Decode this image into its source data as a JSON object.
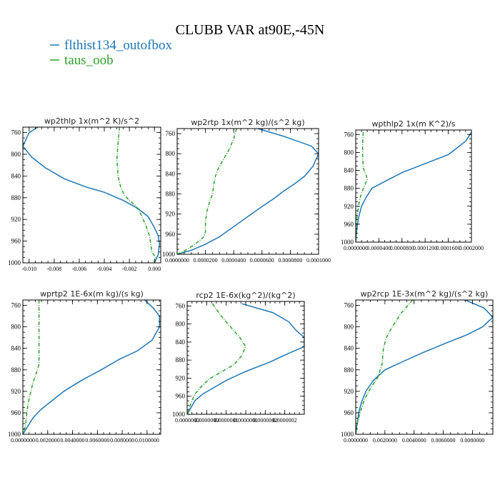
{
  "title": "CLUBB VAR at90E,-45N",
  "colors": {
    "series1": "#1f77b4",
    "series2": "#2ca02c"
  },
  "legend": [
    {
      "label": "flthist134_outofbox",
      "color": "#1f77b4",
      "style": "solid"
    },
    {
      "label": "taus_oob",
      "color": "#2ca02c",
      "style": "dashdot"
    }
  ],
  "chart_data": [
    {
      "type": "line",
      "title": "wp2thlp  1x(m^2 K)/s^2",
      "xlim": [
        -0.0105,
        0.0005
      ],
      "ylim": [
        1000,
        750
      ],
      "yticks": [
        760,
        800,
        840,
        880,
        920,
        960,
        1000
      ],
      "xticks": [
        -0.01,
        -0.008,
        -0.006,
        -0.004,
        -0.002,
        0.0
      ],
      "xtick_labels": [
        "-0.010",
        "-0.008",
        "-0.006",
        "-0.004",
        "-0.002",
        "0.000"
      ],
      "series": [
        {
          "name": "flthist134_outofbox",
          "color": "#1f77b4",
          "dash": "",
          "points": [
            [
              -0.0093,
              750
            ],
            [
              -0.01,
              760
            ],
            [
              -0.0105,
              785
            ],
            [
              -0.0098,
              805
            ],
            [
              -0.0087,
              825
            ],
            [
              -0.0072,
              845
            ],
            [
              -0.0055,
              860
            ],
            [
              -0.004,
              870
            ],
            [
              -0.0025,
              885
            ],
            [
              -0.0013,
              900
            ],
            [
              -0.0005,
              915
            ],
            [
              0.0,
              935
            ],
            [
              0.0003,
              950
            ],
            [
              0.0004,
              965
            ],
            [
              0.0003,
              985
            ],
            [
              0.0,
              1000
            ]
          ]
        },
        {
          "name": "taus_oob",
          "color": "#2ca02c",
          "dash": "5,2,1,2",
          "points": [
            [
              -0.0028,
              750
            ],
            [
              -0.0029,
              780
            ],
            [
              -0.003,
              810
            ],
            [
              -0.0029,
              840
            ],
            [
              -0.0027,
              860
            ],
            [
              -0.0024,
              875
            ],
            [
              -0.002,
              885
            ],
            [
              -0.0015,
              895
            ],
            [
              -0.0011,
              910
            ],
            [
              -0.0007,
              930
            ],
            [
              -0.0004,
              950
            ],
            [
              -0.0003,
              965
            ],
            [
              -0.0002,
              980
            ],
            [
              0.0001,
              990
            ],
            [
              0.0,
              1000
            ]
          ]
        }
      ]
    },
    {
      "type": "line",
      "title": "wp2rtp  1x(m^2 kg)/(s^2 kg)",
      "xlim": [
        0.0,
        0.0001
      ],
      "ylim": [
        1000,
        750
      ],
      "yticks": [
        760,
        800,
        840,
        880,
        920,
        960,
        1000
      ],
      "xticks": [
        0.0,
        2e-05,
        4e-05,
        6e-05,
        8e-05,
        0.0001
      ],
      "xtick_labels": [
        "0.0000000",
        "0.0000200",
        "0.0000400",
        "0.0000600",
        "0.0000800",
        "0.0001000"
      ],
      "series": [
        {
          "name": "flthist134_outofbox",
          "color": "#1f77b4",
          "dash": "",
          "points": [
            [
              5.7e-05,
              750
            ],
            [
              7.5e-05,
              765
            ],
            [
              9.5e-05,
              785
            ],
            [
              0.0001,
              800
            ],
            [
              9.6e-05,
              825
            ],
            [
              9e-05,
              845
            ],
            [
              8.3e-05,
              860
            ],
            [
              7.5e-05,
              875
            ],
            [
              6.8e-05,
              890
            ],
            [
              6e-05,
              905
            ],
            [
              5e-05,
              925
            ],
            [
              4e-05,
              945
            ],
            [
              3e-05,
              965
            ],
            [
              2e-05,
              980
            ],
            [
              1e-05,
              992
            ],
            [
              0.0,
              1000
            ]
          ]
        },
        {
          "name": "taus_oob",
          "color": "#2ca02c",
          "dash": "5,2,1,2",
          "points": [
            [
              4.2e-05,
              750
            ],
            [
              4e-05,
              770
            ],
            [
              3.7e-05,
              790
            ],
            [
              3.3e-05,
              810
            ],
            [
              2.9e-05,
              830
            ],
            [
              2.7e-05,
              845
            ],
            [
              2.6e-05,
              860
            ],
            [
              2.5e-05,
              880
            ],
            [
              2.3e-05,
              895
            ],
            [
              2.1e-05,
              915
            ],
            [
              2e-05,
              935
            ],
            [
              2e-05,
              955
            ],
            [
              1.9e-05,
              965
            ],
            [
              1.5e-05,
              975
            ],
            [
              1e-05,
              985
            ],
            [
              4e-06,
              995
            ],
            [
              0.0,
              1000
            ]
          ]
        }
      ]
    },
    {
      "type": "line",
      "title": "wpthlp2  1x(m K^2)/s",
      "xlim": [
        0.0,
        0.0002
      ],
      "ylim": [
        1000,
        750
      ],
      "yticks": [
        760,
        800,
        840,
        880,
        920,
        960,
        1000
      ],
      "xticks": [
        0.0,
        4e-05,
        8e-05,
        0.00012,
        0.00016,
        0.0002
      ],
      "xtick_labels": [
        "0.0000000",
        "0.0000400",
        "0.0000800",
        "0.0001200",
        "0.0001600",
        "0.0002000"
      ],
      "series": [
        {
          "name": "flthist134_outofbox",
          "color": "#1f77b4",
          "dash": "",
          "points": [
            [
              0.0002,
              755
            ],
            [
              0.00019,
              775
            ],
            [
              0.00016,
              805
            ],
            [
              0.00012,
              825
            ],
            [
              8e-05,
              845
            ],
            [
              5e-05,
              865
            ],
            [
              2.8e-05,
              880
            ],
            [
              1.8e-05,
              900
            ],
            [
              1e-05,
              920
            ],
            [
              5e-06,
              945
            ],
            [
              2e-06,
              970
            ],
            [
              0.0,
              1000
            ]
          ]
        },
        {
          "name": "taus_oob",
          "color": "#2ca02c",
          "dash": "5,2,1,2",
          "points": [
            [
              1.3e-05,
              755
            ],
            [
              1.2e-05,
              780
            ],
            [
              1.2e-05,
              810
            ],
            [
              1.3e-05,
              835
            ],
            [
              1.8e-05,
              850
            ],
            [
              2e-05,
              860
            ],
            [
              1.5e-05,
              875
            ],
            [
              1e-05,
              890
            ],
            [
              6e-06,
              910
            ],
            [
              3e-06,
              935
            ],
            [
              1e-06,
              960
            ],
            [
              0.0,
              1000
            ]
          ]
        }
      ]
    },
    {
      "type": "line",
      "title": "wprtp2  1E-6x(m kg)/(s kg)",
      "xlim": [
        0.0,
        0.0111
      ],
      "ylim": [
        1000,
        750
      ],
      "yticks": [
        760,
        800,
        840,
        880,
        920,
        960,
        1000
      ],
      "xticks": [
        0.0,
        0.002,
        0.004,
        0.006,
        0.008,
        0.01
      ],
      "xtick_labels": [
        "0.0000000",
        "0.0020000",
        "0.0040000",
        "0.0060000",
        "0.0080000",
        "0.0100000"
      ],
      "series": [
        {
          "name": "flthist134_outofbox",
          "color": "#1f77b4",
          "dash": "",
          "points": [
            [
              0.0098,
              750
            ],
            [
              0.0105,
              765
            ],
            [
              0.011,
              780
            ],
            [
              0.011,
              800
            ],
            [
              0.0104,
              825
            ],
            [
              0.0092,
              845
            ],
            [
              0.0078,
              860
            ],
            [
              0.0063,
              880
            ],
            [
              0.0047,
              900
            ],
            [
              0.0033,
              920
            ],
            [
              0.0022,
              940
            ],
            [
              0.0014,
              955
            ],
            [
              0.0008,
              970
            ],
            [
              0.0004,
              985
            ],
            [
              0.0,
              1000
            ]
          ]
        },
        {
          "name": "taus_oob",
          "color": "#2ca02c",
          "dash": "5,2,1,2",
          "points": [
            [
              0.0013,
              750
            ],
            [
              0.0013,
              790
            ],
            [
              0.0013,
              830
            ],
            [
              0.0013,
              870
            ],
            [
              0.0011,
              885
            ],
            [
              0.0008,
              905
            ],
            [
              0.0006,
              925
            ],
            [
              0.0004,
              945
            ],
            [
              0.0003,
              965
            ],
            [
              0.0002,
              985
            ],
            [
              0.0,
              1000
            ]
          ]
        }
      ]
    },
    {
      "type": "line",
      "title": "rcp2  1E-6x(kg^2)/(kg^2)",
      "xlim": [
        0.0,
        3e-07
      ],
      "ylim": [
        1000,
        750
      ],
      "yticks": [
        760,
        800,
        840,
        880,
        920,
        960,
        1000
      ],
      "xticks": [
        0.0,
        5e-08,
        1e-07,
        1.5e-07,
        2e-07,
        2.5e-07
      ],
      "xtick_labels": [
        "0.0000000",
        "0.0000000",
        "0.0000001",
        "0.0000001",
        "0.0000002",
        "0.0000002"
      ],
      "series": [
        {
          "name": "flthist134_outofbox",
          "color": "#1f77b4",
          "dash": "",
          "points": [
            [
              1.4e-07,
              755
            ],
            [
              2.2e-07,
              775
            ],
            [
              2.6e-07,
              795
            ],
            [
              2.8e-07,
              815
            ],
            [
              3e-07,
              830
            ],
            [
              3e-07,
              850
            ],
            [
              2.6e-07,
              865
            ],
            [
              2.1e-07,
              885
            ],
            [
              1.5e-07,
              905
            ],
            [
              1e-07,
              925
            ],
            [
              7e-08,
              940
            ],
            [
              4e-08,
              955
            ],
            [
              2e-08,
              970
            ],
            [
              1e-08,
              985
            ],
            [
              0.0,
              1000
            ]
          ]
        },
        {
          "name": "taus_oob",
          "color": "#2ca02c",
          "dash": "5,2,1,2",
          "points": [
            [
              6.5e-08,
              755
            ],
            [
              8.5e-08,
              780
            ],
            [
              1.1e-07,
              805
            ],
            [
              1.35e-07,
              830
            ],
            [
              1.5e-07,
              850
            ],
            [
              1.4e-07,
              870
            ],
            [
              1.2e-07,
              890
            ],
            [
              9e-08,
              905
            ],
            [
              6e-08,
              920
            ],
            [
              4e-08,
              935
            ],
            [
              2e-08,
              955
            ],
            [
              1e-08,
              975
            ],
            [
              0.0,
              1000
            ]
          ]
        }
      ]
    },
    {
      "type": "line",
      "title": "wp2rcp  1E-3x(m^2 kg)/(s^2 kg)",
      "xlim": [
        0.0,
        0.0094
      ],
      "ylim": [
        1000,
        750
      ],
      "yticks": [
        760,
        800,
        840,
        880,
        920,
        960,
        1000
      ],
      "xticks": [
        0.0,
        0.002,
        0.004,
        0.006,
        0.008
      ],
      "xtick_labels": [
        "0.0000000",
        "0.0020000",
        "0.0040000",
        "0.0060000",
        "0.0080000"
      ],
      "series": [
        {
          "name": "flthist134_outofbox",
          "color": "#1f77b4",
          "dash": "",
          "points": [
            [
              0.0075,
              750
            ],
            [
              0.0088,
              765
            ],
            [
              0.0094,
              782
            ],
            [
              0.0087,
              800
            ],
            [
              0.0076,
              815
            ],
            [
              0.0062,
              830
            ],
            [
              0.0046,
              848
            ],
            [
              0.0032,
              865
            ],
            [
              0.002,
              880
            ],
            [
              0.0012,
              900
            ],
            [
              0.0007,
              920
            ],
            [
              0.0004,
              940
            ],
            [
              0.0002,
              960
            ],
            [
              0.0,
              1000
            ]
          ]
        },
        {
          "name": "taus_oob",
          "color": "#2ca02c",
          "dash": "5,2,1,2",
          "points": [
            [
              0.0039,
              750
            ],
            [
              0.0031,
              775
            ],
            [
              0.0025,
              800
            ],
            [
              0.0021,
              820
            ],
            [
              0.0019,
              840
            ],
            [
              0.0018,
              870
            ],
            [
              0.0015,
              895
            ],
            [
              0.001,
              915
            ],
            [
              0.0006,
              935
            ],
            [
              0.0003,
              960
            ],
            [
              0.0001,
              980
            ],
            [
              0.0,
              1000
            ]
          ]
        }
      ]
    }
  ]
}
